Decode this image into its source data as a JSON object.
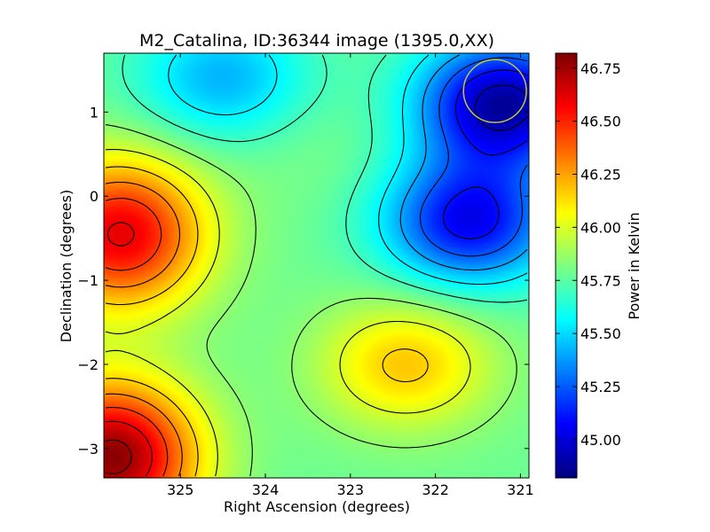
{
  "chart_data": {
    "type": "heatmap",
    "title": "M2_Catalina, ID:36344 image (1395.0,XX)",
    "xlabel": "Right Ascension (degrees)",
    "ylabel": "Declination (degrees)",
    "colorbar_label": "Power in Kelvin",
    "xlim": [
      325.9,
      320.9
    ],
    "ylim": [
      -3.35,
      1.7
    ],
    "x_ticks": [
      325,
      324,
      323,
      322,
      321
    ],
    "y_ticks": [
      1,
      0,
      -1,
      -2,
      -3
    ],
    "colorbar_range": [
      44.82,
      46.82
    ],
    "colorbar_ticks": [
      46.75,
      46.5,
      46.25,
      46.0,
      45.75,
      45.5,
      45.25,
      45.0
    ],
    "colorbar_tick_labels": [
      "46.75",
      "46.50",
      "46.25",
      "46.00",
      "45.75",
      "45.50",
      "45.25",
      "45.00"
    ],
    "colormap": "jet",
    "contour_color": "#000000",
    "beam_marker": {
      "ra": 321.3,
      "dec": 1.25,
      "radius_deg": 0.37,
      "color": "#c8c832"
    },
    "features": [
      {
        "kind": "max",
        "ra": 325.7,
        "dec": -0.45,
        "value": 46.62
      },
      {
        "kind": "max",
        "ra": 325.8,
        "dec": -3.1,
        "value": 46.8
      },
      {
        "kind": "max",
        "ra": 322.35,
        "dec": -2.0,
        "value": 46.18
      },
      {
        "kind": "min",
        "ra": 321.2,
        "dec": 1.1,
        "value": 44.88
      },
      {
        "kind": "min",
        "ra": 321.6,
        "dec": -0.3,
        "value": 45.05
      },
      {
        "kind": "max",
        "ra": 323.5,
        "dec": 0.6,
        "value": 45.82
      },
      {
        "kind": "min",
        "ra": 324.5,
        "dec": 1.4,
        "value": 45.42
      }
    ]
  }
}
